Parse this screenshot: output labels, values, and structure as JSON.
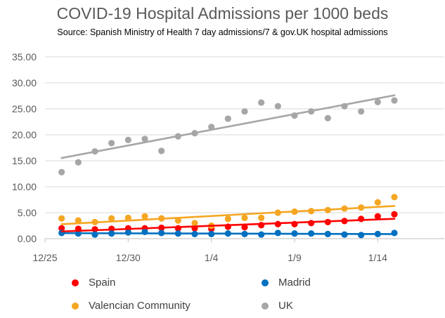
{
  "chart_data": {
    "type": "scatter",
    "title": "COVID-19 Hospital Admissions per 1000 beds",
    "subtitle": "Source: Spanish Ministry of Health 7 day admissions/7 & gov.UK hospital admissions",
    "xlabel": "",
    "ylabel": "",
    "x_tick_labels": [
      "12/25",
      "12/30",
      "1/4",
      "1/9",
      "1/14"
    ],
    "y_tick_labels": [
      "0.00",
      "5.00",
      "10.00",
      "15.00",
      "20.00",
      "25.00",
      "30.00",
      "35.00"
    ],
    "xlim": [
      "12/25",
      "1/18"
    ],
    "ylim": [
      0,
      35
    ],
    "grid": "horizontal",
    "trendlines": "linear",
    "legend_placement": "bottom",
    "x": [
      "12/26",
      "12/27",
      "12/28",
      "12/29",
      "12/30",
      "12/31",
      "1/1",
      "1/2",
      "1/3",
      "1/4",
      "1/5",
      "1/6",
      "1/7",
      "1/8",
      "1/9",
      "1/10",
      "1/11",
      "1/12",
      "1/13",
      "1/14",
      "1/15"
    ],
    "series": [
      {
        "name": "Spain",
        "color": "#ff0000",
        "values": [
          2.0,
          1.9,
          1.8,
          1.9,
          2.0,
          2.0,
          2.1,
          2.0,
          2.0,
          1.9,
          2.3,
          2.2,
          2.6,
          2.8,
          2.8,
          3.0,
          3.2,
          3.4,
          3.8,
          4.3,
          4.7
        ]
      },
      {
        "name": "Madrid",
        "color": "#0070c0",
        "values": [
          1.1,
          1.0,
          0.8,
          1.0,
          1.2,
          1.3,
          1.1,
          1.0,
          0.9,
          0.9,
          1.0,
          0.9,
          0.8,
          1.1,
          1.0,
          1.0,
          0.9,
          0.8,
          0.7,
          0.9,
          1.1
        ]
      },
      {
        "name": "Valencian Community",
        "color": "#f5a623",
        "values": [
          3.9,
          3.5,
          3.2,
          3.9,
          4.0,
          4.3,
          3.9,
          3.5,
          3.0,
          2.5,
          3.8,
          4.0,
          4.0,
          5.0,
          5.2,
          5.3,
          5.5,
          5.8,
          6.0,
          7.0,
          8.0
        ]
      },
      {
        "name": "UK",
        "color": "#a6a6a6",
        "values": [
          12.8,
          14.7,
          16.8,
          18.4,
          19.0,
          19.2,
          16.9,
          19.7,
          20.3,
          21.5,
          23.1,
          24.5,
          26.2,
          25.5,
          23.7,
          24.5,
          23.2,
          25.5,
          24.5,
          26.3,
          26.6
        ]
      }
    ]
  }
}
